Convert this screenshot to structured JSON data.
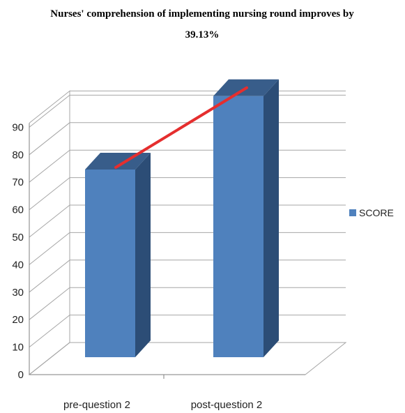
{
  "chart_data": {
    "type": "bar",
    "title": "Nurses' comprehension of implementing nursing round improves by",
    "subtitle": "39.13%",
    "categories": [
      "pre-question 2",
      "post-question 2"
    ],
    "series": [
      {
        "name": "SCORE",
        "values": [
          64.4,
          89.6
        ]
      }
    ],
    "trend_line": true,
    "ylim": [
      0,
      90
    ],
    "yticks": [
      0,
      10,
      20,
      30,
      40,
      50,
      60,
      70,
      80,
      90
    ],
    "grid": true,
    "legend": "right",
    "colors": {
      "bar_front": "#4F81BD",
      "bar_side": "#2C4D76",
      "bar_top": "#385D8A",
      "trend": "#E52E2E",
      "grid": "#A6A6A6"
    }
  }
}
